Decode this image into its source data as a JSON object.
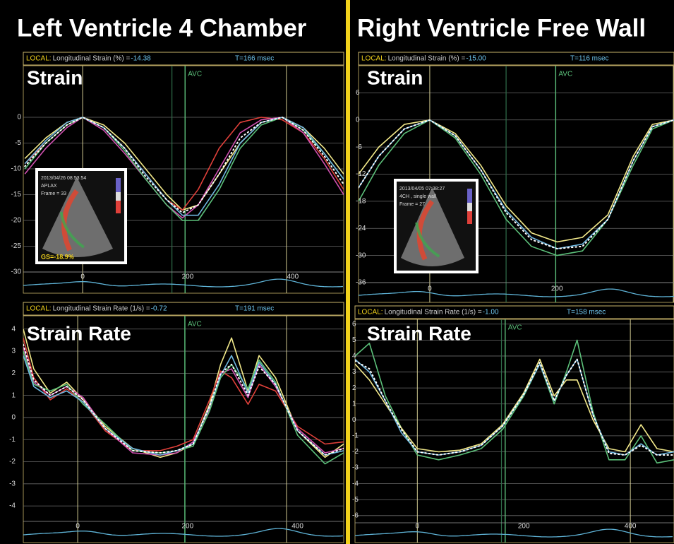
{
  "headers": [
    "Left Ventricle 4 Chamber",
    "Right Ventricle Free Wall"
  ],
  "chart_data": [
    {
      "type": "line",
      "title": "Strain",
      "readout": {
        "local": "LOCAL:",
        "measure": "Longitudinal Strain (%) =",
        "value": "-14.38",
        "time": "T=166 msec"
      },
      "annotation": "AVC",
      "avc": 195,
      "markers": [
        0,
        388
      ],
      "cursor": 170,
      "xlim": [
        -113,
        497
      ],
      "ylim": [
        -30,
        10
      ],
      "xticks": [
        0,
        200,
        400
      ],
      "yticks": [
        0,
        -5,
        -10,
        -15,
        -20,
        -25,
        -30
      ],
      "grid": true,
      "x": [
        -110,
        -70,
        -30,
        0,
        40,
        80,
        120,
        160,
        190,
        220,
        260,
        300,
        340,
        380,
        420,
        460,
        497
      ],
      "series": [
        {
          "color": "#f2e98a",
          "values": [
            -8,
            -4,
            -1,
            0,
            -1.5,
            -5,
            -10,
            -15,
            -18,
            -17,
            -11,
            -5,
            -1,
            0,
            -2,
            -6,
            -11
          ]
        },
        {
          "color": "#e0403a",
          "values": [
            -9,
            -5,
            -1.5,
            0,
            -2,
            -6,
            -11,
            -16,
            -18,
            -14,
            -6,
            -1,
            0,
            -0.5,
            -3,
            -8,
            -14
          ]
        },
        {
          "color": "#d050b0",
          "values": [
            -11,
            -6,
            -2,
            0,
            -2.5,
            -7,
            -12,
            -17,
            -19.5,
            -17,
            -10,
            -3,
            -0.5,
            0,
            -3,
            -9,
            -15
          ]
        },
        {
          "color": "#5cc07a",
          "values": [
            -10,
            -5,
            -1.5,
            0,
            -2,
            -6.5,
            -12,
            -17,
            -20,
            -20,
            -14,
            -6,
            -1.5,
            0,
            -2.5,
            -7,
            -12
          ]
        },
        {
          "color": "#6fb7e0",
          "values": [
            -9,
            -4.5,
            -1,
            0,
            -2,
            -6,
            -11,
            -16,
            -19,
            -19,
            -13,
            -5,
            -1,
            0,
            -2,
            -7,
            -12
          ]
        },
        {
          "color": "#ffffff",
          "dotted": true,
          "values": [
            -9.5,
            -5,
            -1.5,
            0,
            -2,
            -6,
            -11.5,
            -16,
            -18.5,
            -17,
            -11,
            -4,
            -1,
            0,
            -2.5,
            -7.5,
            -13
          ]
        }
      ],
      "inset": [
        "2013/04/26 08:53:54",
        "APLAX",
        "Frame = 33",
        "GS=-18.9%"
      ]
    },
    {
      "type": "line",
      "title": "Strain Rate",
      "readout": {
        "local": "LOCAL:",
        "measure": "Longitudinal Strain Rate (1/s) =",
        "value": "-0.72",
        "time": "T=191 msec"
      },
      "annotation": "AVC",
      "avc": 195,
      "markers": [
        0,
        380
      ],
      "cursor": 195,
      "xlim": [
        -99,
        484
      ],
      "ylim": [
        -4.7,
        4.6
      ],
      "xticks": [
        0,
        200,
        400
      ],
      "yticks": [
        4,
        3,
        2,
        1,
        0,
        -1,
        -2,
        -3,
        -4
      ],
      "grid": true,
      "x": [
        -99,
        -80,
        -50,
        -20,
        10,
        50,
        100,
        150,
        180,
        210,
        240,
        260,
        280,
        310,
        330,
        360,
        400,
        450,
        484
      ],
      "series": [
        {
          "color": "#f2e98a",
          "values": [
            4,
            2.2,
            1.1,
            1.6,
            0.8,
            -0.4,
            -1.4,
            -1.8,
            -1.6,
            -1.2,
            0.6,
            2.4,
            3.6,
            1.2,
            2.8,
            1.8,
            -0.6,
            -1.8,
            -1.2
          ]
        },
        {
          "color": "#e0403a",
          "values": [
            3.6,
            1.8,
            0.8,
            1.3,
            0.7,
            -0.6,
            -1.5,
            -1.5,
            -1.3,
            -1,
            0.8,
            2.1,
            1.8,
            0.6,
            1.5,
            1.2,
            -0.4,
            -1.2,
            -1.1
          ]
        },
        {
          "color": "#d050b0",
          "values": [
            3.2,
            1.6,
            1,
            1.4,
            0.9,
            -0.5,
            -1.6,
            -1.7,
            -1.6,
            -1.1,
            0.4,
            2,
            2.2,
            0.9,
            2.4,
            1.4,
            -0.5,
            -1.6,
            -1.4
          ]
        },
        {
          "color": "#5cc07a",
          "values": [
            3,
            1.5,
            1.2,
            1.5,
            0.6,
            -0.3,
            -1.5,
            -1.6,
            -1.5,
            -1.3,
            0.3,
            1.8,
            2.4,
            1.3,
            2.6,
            1.6,
            -0.8,
            -2.1,
            -1.6
          ]
        },
        {
          "color": "#6fb7e0",
          "values": [
            2.8,
            1.4,
            0.9,
            1.2,
            0.7,
            -0.5,
            -1.4,
            -1.7,
            -1.5,
            -1.2,
            0.5,
            1.9,
            2.8,
            1.1,
            2.5,
            1.5,
            -0.6,
            -1.7,
            -1.5
          ]
        },
        {
          "color": "#ffffff",
          "dotted": true,
          "values": [
            3.3,
            1.7,
            1,
            1.4,
            0.8,
            -0.5,
            -1.5,
            -1.6,
            -1.5,
            -1.2,
            0.5,
            2,
            2.4,
            1,
            2.3,
            1.5,
            -0.6,
            -1.7,
            -1.4
          ]
        }
      ]
    },
    {
      "type": "line",
      "title": "Strain",
      "readout": {
        "local": "LOCAL:",
        "measure": "Longitudinal Strain (%) =",
        "value": "-15.00",
        "time": "T=116 msec"
      },
      "annotation": "AVC",
      "avc": 198,
      "markers": [
        0,
        383
      ],
      "cursor": 120,
      "xlim": [
        -112,
        384
      ],
      "ylim": [
        -36,
        12
      ],
      "xticks": [
        0,
        200
      ],
      "yticks": [
        6,
        0,
        -6,
        -12,
        -18,
        -24,
        -30,
        -36
      ],
      "grid": true,
      "x": [
        -112,
        -80,
        -40,
        0,
        40,
        80,
        120,
        160,
        200,
        240,
        280,
        320,
        350,
        384
      ],
      "series": [
        {
          "color": "#5cc07a",
          "values": [
            -18,
            -10,
            -3,
            0,
            -4,
            -12,
            -22,
            -28,
            -30,
            -29,
            -22,
            -10,
            -2,
            0
          ]
        },
        {
          "color": "#f2e98a",
          "values": [
            -12,
            -6,
            -1,
            0,
            -3,
            -10,
            -19,
            -25,
            -27,
            -26,
            -21,
            -8,
            -1,
            0
          ]
        },
        {
          "color": "#6fb7e0",
          "values": [
            -15,
            -8,
            -2,
            0,
            -3.5,
            -11,
            -20,
            -26,
            -28.5,
            -27.5,
            -22,
            -9,
            -1.5,
            0
          ]
        },
        {
          "color": "#ffffff",
          "dotted": true,
          "values": [
            -15,
            -8,
            -2,
            0,
            -3.5,
            -11,
            -20.5,
            -26.5,
            -28.5,
            -28,
            -22,
            -9,
            -1.5,
            0
          ]
        }
      ],
      "inset": [
        "2013/04/05 07:38:27",
        "4CH , single wall",
        "Frame = 27"
      ]
    },
    {
      "type": "line",
      "title": "Strain Rate",
      "readout": {
        "local": "LOCAL:",
        "measure": "Longitudinal Strain Rate (1/s) =",
        "value": "-1.00",
        "time": "T=158 msec"
      },
      "annotation": "AVC",
      "avc": 165,
      "markers": [
        0,
        400
      ],
      "cursor": 158,
      "xlim": [
        -117,
        482
      ],
      "ylim": [
        -6.45,
        6.3
      ],
      "xticks": [
        0,
        200,
        400
      ],
      "yticks": [
        6,
        5,
        4,
        3,
        2,
        1,
        0,
        -1,
        -2,
        -3,
        -4,
        -5,
        -6
      ],
      "grid": true,
      "x": [
        -117,
        -90,
        -60,
        -30,
        0,
        40,
        80,
        120,
        160,
        200,
        230,
        257,
        280,
        300,
        330,
        360,
        390,
        420,
        450,
        482
      ],
      "series": [
        {
          "color": "#5cc07a",
          "values": [
            4,
            4.8,
            1.5,
            -0.5,
            -2.2,
            -2.5,
            -2.2,
            -1.8,
            -0.6,
            1.5,
            3.5,
            1,
            3,
            5,
            0.5,
            -2.5,
            -2.5,
            -1,
            -2.7,
            -2.5
          ]
        },
        {
          "color": "#f2e98a",
          "values": [
            3.5,
            2.5,
            1,
            -0.5,
            -1.8,
            -2,
            -1.9,
            -1.5,
            -0.3,
            1.7,
            3.8,
            1.5,
            2.5,
            2.5,
            0,
            -1.8,
            -2,
            -0.3,
            -1.8,
            -2
          ]
        },
        {
          "color": "#6fb7e0",
          "values": [
            3.8,
            3,
            1.2,
            -0.8,
            -2,
            -2.2,
            -2,
            -1.6,
            -0.4,
            1.6,
            3.5,
            1.2,
            2.8,
            3.8,
            0.3,
            -2,
            -2.2,
            -1.5,
            -2.2,
            -2
          ]
        },
        {
          "color": "#ffffff",
          "dotted": true,
          "values": [
            3.7,
            3.2,
            1.2,
            -0.6,
            -2,
            -2.2,
            -2,
            -1.6,
            -0.4,
            1.6,
            3.6,
            1.2,
            2.8,
            3.8,
            0.3,
            -2.1,
            -2.2,
            -1.6,
            -2.2,
            -2.2
          ]
        }
      ]
    }
  ]
}
